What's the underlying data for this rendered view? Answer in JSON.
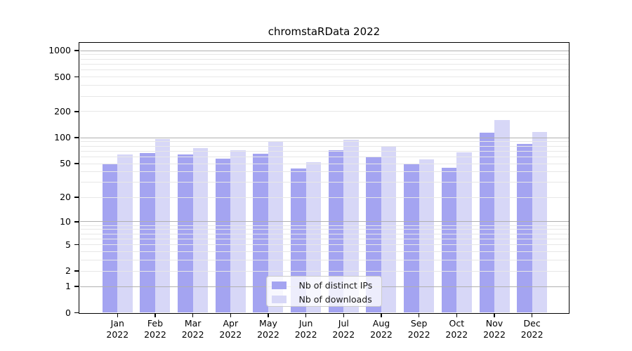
{
  "chart_data": {
    "type": "bar",
    "title": "chromstaRData 2022",
    "categories": [
      "Jan",
      "Feb",
      "Mar",
      "Apr",
      "May",
      "Jun",
      "Jul",
      "Aug",
      "Sep",
      "Oct",
      "Nov",
      "Dec"
    ],
    "year": "2022",
    "series": [
      {
        "name": "Nb of distinct IPs",
        "color": "#a4a4f1",
        "values": [
          50,
          67,
          64,
          57,
          65,
          44,
          72,
          59,
          50,
          45,
          115,
          84
        ]
      },
      {
        "name": "Nb of downloads",
        "color": "#d7d7f7",
        "values": [
          64,
          96,
          76,
          71,
          91,
          52,
          95,
          80,
          56,
          68,
          159,
          117
        ]
      }
    ],
    "yscale": "log1p",
    "yticks": [
      0,
      1,
      2,
      5,
      10,
      20,
      50,
      100,
      200,
      500,
      1000
    ],
    "ylim": [
      0,
      1260
    ],
    "xlabel": "",
    "ylabel": "",
    "grid": "horizontal, major at powers of ten, minor between, drawn over bars",
    "legend_position": "lower center",
    "colors": {
      "axis": "#000000",
      "text": "#000000",
      "grid_major": "#b0b0b0",
      "grid_minor": "#e7e7e7",
      "legend_border": "#cbcbcb"
    }
  }
}
